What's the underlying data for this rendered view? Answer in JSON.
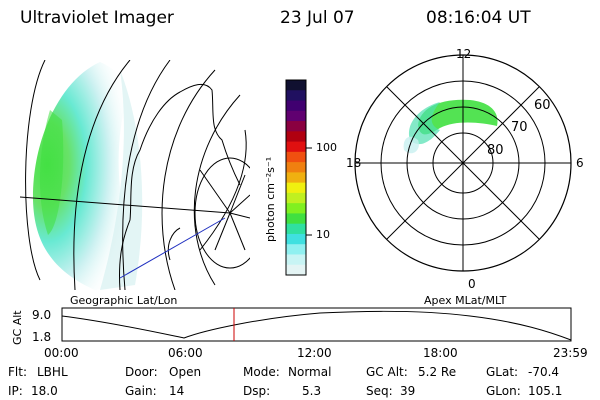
{
  "header": {
    "instrument": "Ultraviolet Imager",
    "date": "23 Jul 07",
    "time": "08:16:04 UT"
  },
  "colorbar": {
    "unit_label": "photon cm⁻²s⁻¹",
    "ticks": [
      "100",
      "10"
    ],
    "scale": "log",
    "colors": [
      "#101030",
      "#201060",
      "#400070",
      "#600070",
      "#8a0040",
      "#b00010",
      "#e01010",
      "#f05010",
      "#f08010",
      "#f0b010",
      "#f0f010",
      "#c0f020",
      "#80f020",
      "#40e040",
      "#30e0a0",
      "#40e0e0",
      "#90f0f0",
      "#c8f4f4",
      "#e4f4f4"
    ]
  },
  "geo_panel": {
    "label": "Geographic Lat/Lon"
  },
  "polar_panel": {
    "label": "Apex MLat/MLT",
    "mlt_labels": [
      "12",
      "18",
      "6",
      "0"
    ],
    "lat_labels": [
      "60",
      "70",
      "80"
    ]
  },
  "gc_alt_plot": {
    "ylabel": "GC Alt",
    "ytick_top": "9.0",
    "ytick_bottom": "1.8",
    "xticks": [
      "00:00",
      "06:00",
      "12:00",
      "18:00",
      "23:59"
    ],
    "current_time_marker_color": "#cc0000"
  },
  "info": {
    "filter_label": "Flt:",
    "filter": "LBHL",
    "ip_label": "IP:",
    "ip": "18.0",
    "door_label": "Door:",
    "door": "Open",
    "gain_label": "Gain:",
    "gain": "14",
    "mode_label": "Mode:",
    "mode": "Normal",
    "dsp_label": "Dsp:",
    "dsp": "5.3",
    "gcalt_label": "GC Alt:",
    "gcalt": "5.2 Re",
    "seq_label": "Seq:",
    "seq": "39",
    "glat_label": "GLat:",
    "glat": "-70.4",
    "glon_label": "GLon:",
    "glon": "105.1"
  }
}
